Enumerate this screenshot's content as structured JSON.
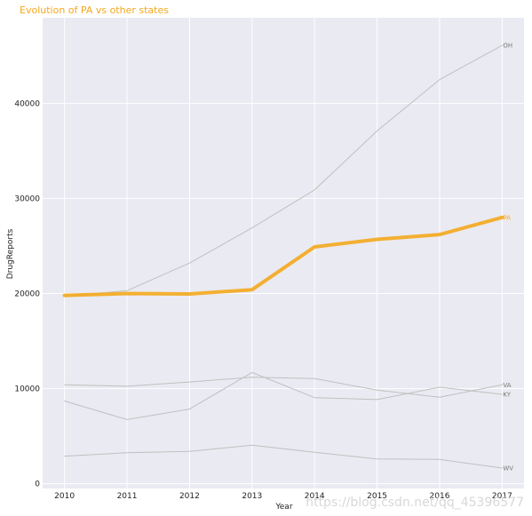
{
  "chart_data": {
    "type": "line",
    "title": "Evolution of PA vs other states",
    "xlabel": "Year",
    "ylabel": "DrugReports",
    "x": [
      2010,
      2011,
      2012,
      2013,
      2014,
      2015,
      2016,
      2017
    ],
    "ylim": [
      -500,
      49000
    ],
    "yticks": [
      0,
      10000,
      20000,
      30000,
      40000
    ],
    "grid": true,
    "highlight": "PA",
    "series": [
      {
        "name": "OH",
        "values": [
          19700,
          20300,
          23200,
          26900,
          30900,
          37100,
          42500,
          46100
        ]
      },
      {
        "name": "PA",
        "values": [
          19800,
          20000,
          19950,
          20400,
          24900,
          25700,
          26200,
          28000
        ]
      },
      {
        "name": "VA",
        "values": [
          10400,
          10250,
          10700,
          11200,
          11050,
          9850,
          9100,
          10400
        ]
      },
      {
        "name": "KY",
        "values": [
          8700,
          6750,
          7850,
          11700,
          9050,
          8850,
          10150,
          9400
        ]
      },
      {
        "name": "WV",
        "values": [
          2900,
          3250,
          3400,
          4050,
          3300,
          2600,
          2550,
          1650
        ]
      }
    ],
    "colors": {
      "highlight": "#f4a81d",
      "other": "#c0c0c0",
      "background": "#eaeaf2",
      "grid": "#ffffff",
      "title": "#f4a81d",
      "label_other": "#777777"
    }
  },
  "watermark": "https://blog.csdn.net/qq_45396577"
}
